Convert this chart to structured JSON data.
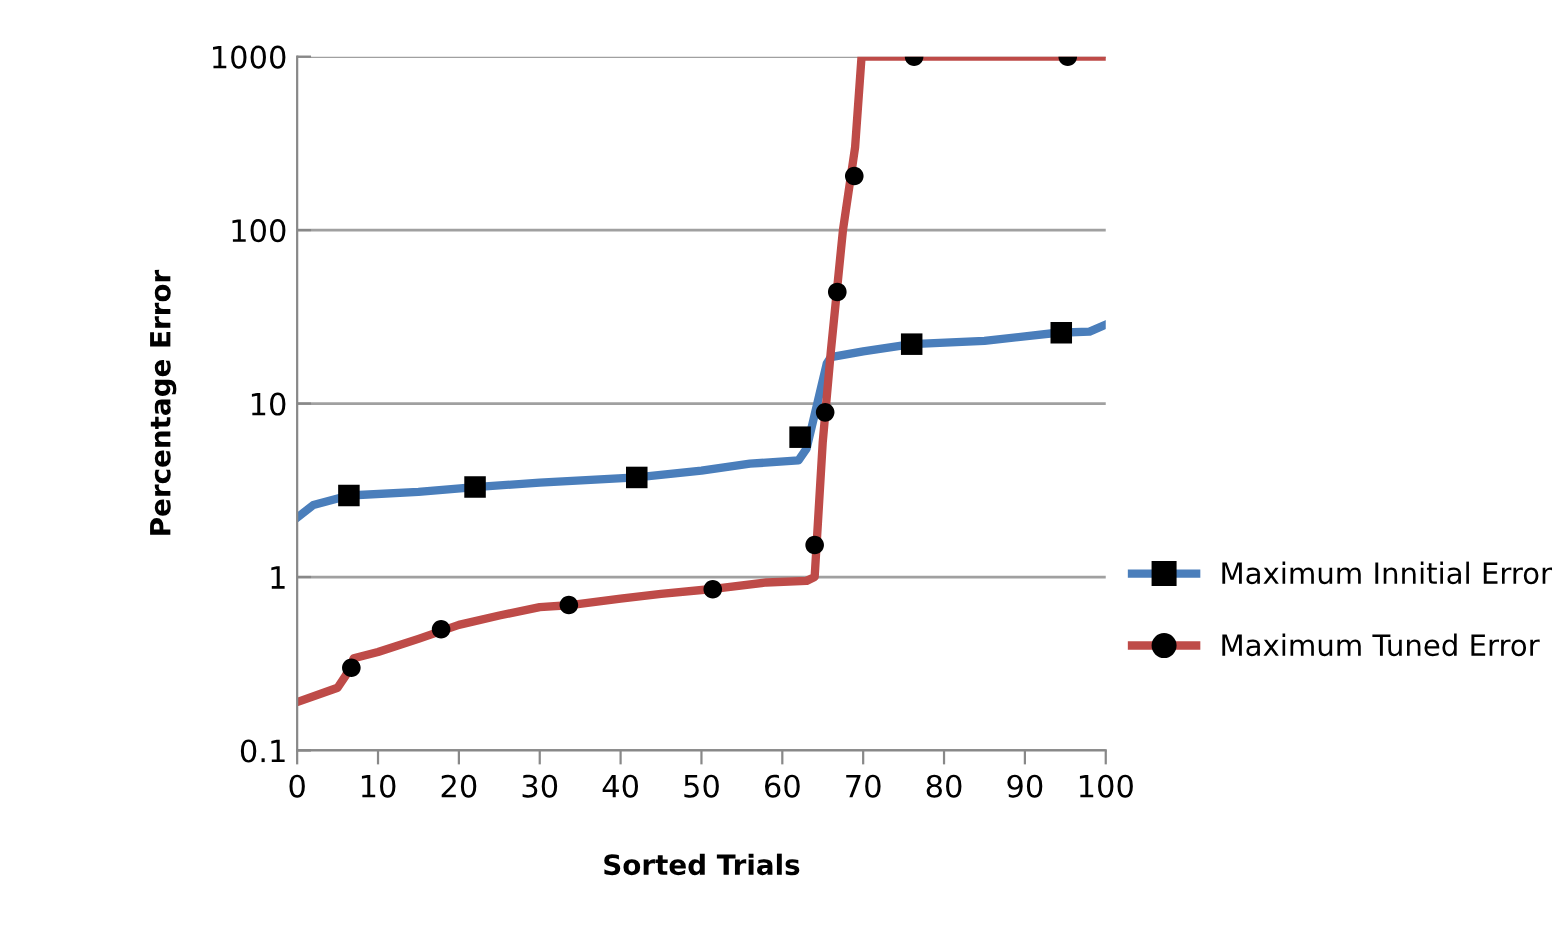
{
  "chart_data": {
    "type": "line",
    "xlabel": "Sorted Trials",
    "ylabel": "Percentage Error",
    "log": "y",
    "grid": "y",
    "legend": "right",
    "xlim": [
      0,
      100
    ],
    "xticks": [
      0,
      10,
      20,
      30,
      40,
      50,
      60,
      70,
      80,
      90,
      100
    ],
    "ylim": [
      0.1,
      1000
    ],
    "yticks": [
      0.1,
      1,
      10,
      100,
      1000
    ],
    "series": [
      {
        "name": "Maximum Innitial Error",
        "color": "#4a7ebb",
        "x": [
          0,
          2,
          6.4,
          15,
          22,
          30,
          42,
          50,
          56,
          62,
          63,
          65.5,
          66,
          70,
          76,
          85,
          94,
          98,
          100
        ],
        "values": [
          2.2,
          2.6,
          2.95,
          3.1,
          3.3,
          3.5,
          3.75,
          4.1,
          4.5,
          4.7,
          5.5,
          17,
          18.5,
          20,
          22,
          23,
          25.6,
          26,
          28.5
        ]
      },
      {
        "type": "scatter",
        "color": "#000000",
        "marker": "square",
        "x": [
          6.4,
          22,
          42,
          62.2,
          76,
          94.5
        ],
        "values": [
          2.95,
          3.3,
          3.75,
          6.4,
          22,
          25.6
        ]
      },
      {
        "name": "Maximum Tuned Error",
        "color": "#be4b48",
        "x": [
          0,
          5,
          6,
          7,
          10,
          15,
          20,
          25,
          30,
          34,
          40,
          45,
          51,
          58,
          63,
          64,
          65,
          66,
          67.5,
          69,
          69.8,
          100
        ],
        "values": [
          0.19,
          0.23,
          0.27,
          0.34,
          0.37,
          0.44,
          0.53,
          0.6,
          0.67,
          0.69,
          0.75,
          0.8,
          0.85,
          0.93,
          0.95,
          1.0,
          6,
          20,
          100,
          300,
          1000,
          1000
        ]
      },
      {
        "type": "scatter",
        "color": "#000000",
        "marker": "circle",
        "x": [
          6.7,
          17.8,
          33.6,
          51.4,
          64,
          65.3,
          66.8,
          68.9,
          76.3,
          95.3
        ],
        "values": [
          0.3,
          0.5,
          0.69,
          0.85,
          1.53,
          8.9,
          44,
          205,
          1000,
          1000
        ]
      }
    ]
  }
}
